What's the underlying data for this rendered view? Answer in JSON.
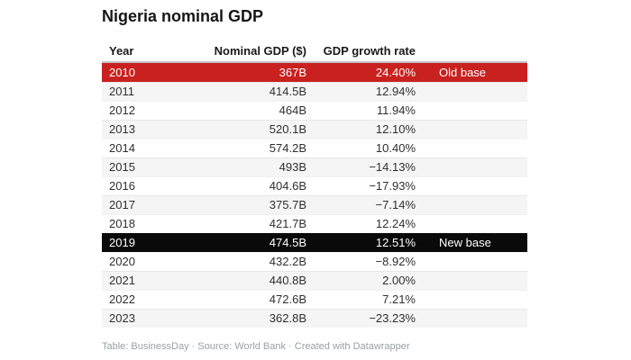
{
  "title": "Nigeria nominal GDP",
  "table": {
    "headers": {
      "year": "Year",
      "gdp": "Nominal GDP ($)",
      "growth": "GDP growth rate",
      "note": ""
    },
    "rows": [
      {
        "year": "2010",
        "gdp": "367B",
        "growth": "24.40%",
        "note": "Old base",
        "highlight": "red"
      },
      {
        "year": "2011",
        "gdp": "414.5B",
        "growth": "12.94%",
        "note": "",
        "highlight": "zebra"
      },
      {
        "year": "2012",
        "gdp": "464B",
        "growth": "11.94%",
        "note": "",
        "highlight": "none"
      },
      {
        "year": "2013",
        "gdp": "520.1B",
        "growth": "12.10%",
        "note": "",
        "highlight": "zebra"
      },
      {
        "year": "2014",
        "gdp": "574.2B",
        "growth": "10.40%",
        "note": "",
        "highlight": "none"
      },
      {
        "year": "2015",
        "gdp": "493B",
        "growth": "−14.13%",
        "note": "",
        "highlight": "zebra"
      },
      {
        "year": "2016",
        "gdp": "404.6B",
        "growth": "−17.93%",
        "note": "",
        "highlight": "none"
      },
      {
        "year": "2017",
        "gdp": "375.7B",
        "growth": "−7.14%",
        "note": "",
        "highlight": "zebra"
      },
      {
        "year": "2018",
        "gdp": "421.7B",
        "growth": "12.24%",
        "note": "",
        "highlight": "none"
      },
      {
        "year": "2019",
        "gdp": "474.5B",
        "growth": "12.51%",
        "note": "New base",
        "highlight": "black"
      },
      {
        "year": "2020",
        "gdp": "432.2B",
        "growth": "−8.92%",
        "note": "",
        "highlight": "none"
      },
      {
        "year": "2021",
        "gdp": "440.8B",
        "growth": "2.00%",
        "note": "",
        "highlight": "zebra"
      },
      {
        "year": "2022",
        "gdp": "472.6B",
        "growth": "7.21%",
        "note": "",
        "highlight": "none"
      },
      {
        "year": "2023",
        "gdp": "362.8B",
        "growth": "−23.23%",
        "note": "",
        "highlight": "zebra"
      }
    ]
  },
  "footer": "Table: BusinessDay · Source: World Bank · Created with Datawrapper",
  "colors": {
    "old_base_red": "#c8211f",
    "new_base_black": "#0a0a0a",
    "zebra_gray": "#f5f5f5",
    "header_rule": "#bfc4c8"
  },
  "chart_data": {
    "type": "table",
    "title": "Nigeria nominal GDP",
    "columns": [
      "Year",
      "Nominal GDP ($)",
      "GDP growth rate"
    ],
    "x": [
      2010,
      2011,
      2012,
      2013,
      2014,
      2015,
      2016,
      2017,
      2018,
      2019,
      2020,
      2021,
      2022,
      2023
    ],
    "series": [
      {
        "name": "Nominal GDP ($, billions)",
        "values": [
          367,
          414.5,
          464,
          520.1,
          574.2,
          493,
          404.6,
          375.7,
          421.7,
          474.5,
          432.2,
          440.8,
          472.6,
          362.8
        ]
      },
      {
        "name": "GDP growth rate (%)",
        "values": [
          24.4,
          12.94,
          11.94,
          12.1,
          10.4,
          -14.13,
          -17.93,
          -7.14,
          12.24,
          12.51,
          -8.92,
          2.0,
          7.21,
          -23.23
        ]
      }
    ],
    "annotations": [
      {
        "year": 2010,
        "label": "Old base",
        "color": "#c8211f"
      },
      {
        "year": 2019,
        "label": "New base",
        "color": "#0a0a0a"
      }
    ]
  }
}
